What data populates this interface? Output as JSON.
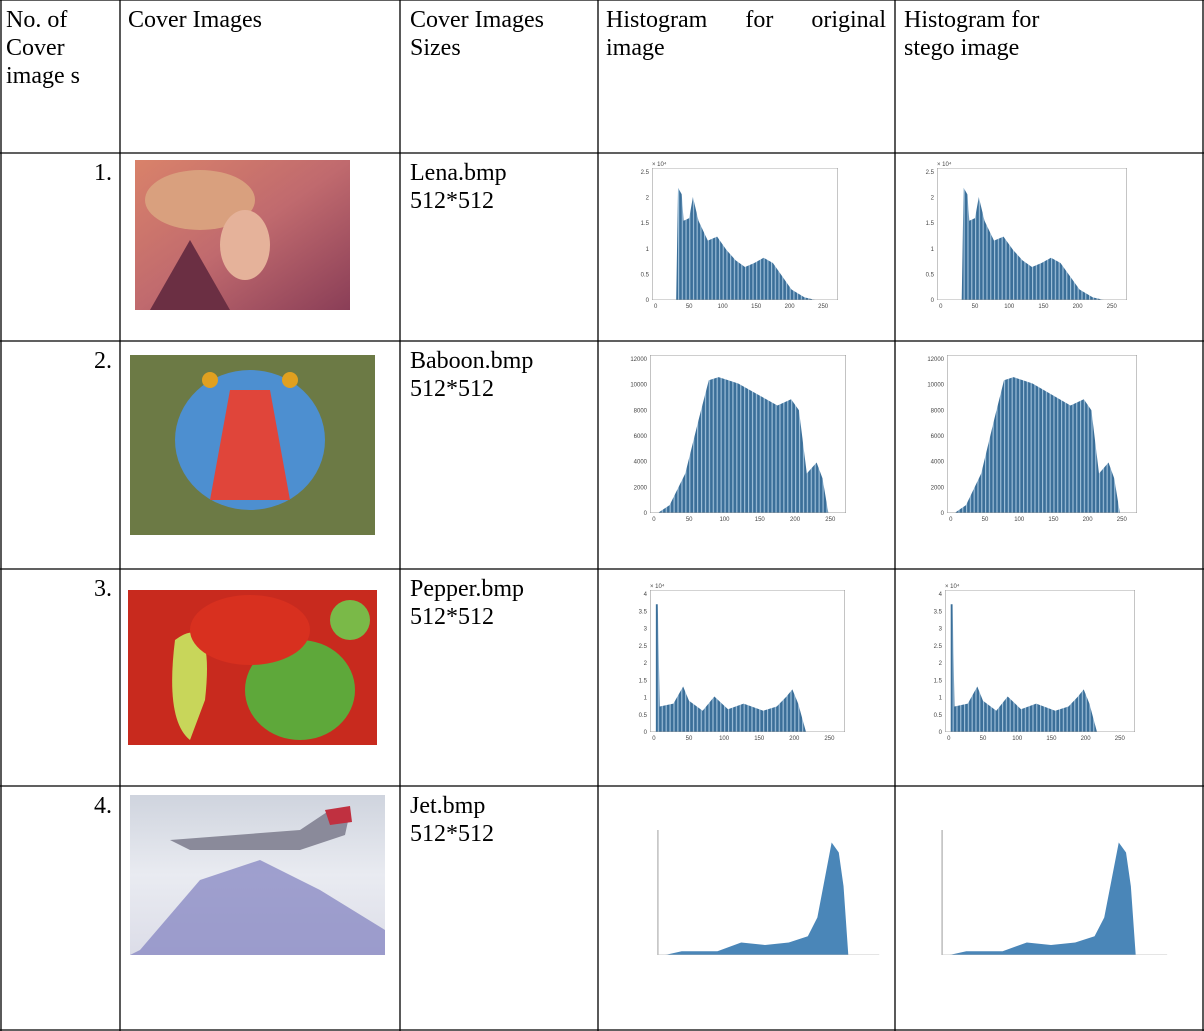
{
  "table": {
    "header": [
      "No. of Cover image s",
      "Cover Images",
      "Cover Images Sizes",
      "Histogram for original image",
      "Histogram for stego image"
    ],
    "rows": [
      {
        "number": "1.",
        "name": "Lena.bmp",
        "size": "512*512",
        "histograms": [
          {
            "y_exponent": "× 10⁴",
            "y_ticks": [
              0,
              0.5,
              1,
              1.5,
              2,
              2.5
            ],
            "x_ticks": [
              0,
              50,
              100,
              150,
              200,
              250
            ]
          },
          {
            "y_exponent": "× 10⁴",
            "y_ticks": [
              0,
              0.5,
              1,
              1.5,
              2,
              2.5
            ],
            "x_ticks": [
              0,
              50,
              100,
              150,
              200,
              250
            ]
          }
        ]
      },
      {
        "number": "2.",
        "name": "Baboon.bmp",
        "size": "512*512",
        "histograms": [
          {
            "y_ticks": [
              0,
              2000,
              4000,
              6000,
              8000,
              10000,
              12000
            ],
            "x_ticks": [
              0,
              50,
              100,
              150,
              200,
              250
            ]
          },
          {
            "y_ticks": [
              0,
              2000,
              4000,
              6000,
              8000,
              10000,
              12000
            ],
            "x_ticks": [
              0,
              50,
              100,
              150,
              200,
              250
            ]
          }
        ]
      },
      {
        "number": "3.",
        "name": "Pepper.bmp",
        "size": "512*512",
        "histograms": [
          {
            "y_exponent": "× 10⁴",
            "y_ticks": [
              0,
              0.5,
              1,
              1.5,
              2,
              2.5,
              3,
              3.5,
              4
            ],
            "x_ticks": [
              0,
              50,
              100,
              150,
              200,
              250
            ]
          },
          {
            "y_exponent": "× 10⁴",
            "y_ticks": [
              0,
              0.5,
              1,
              1.5,
              2,
              2.5,
              3,
              3.5,
              4
            ],
            "x_ticks": [
              0,
              50,
              100,
              150,
              200,
              250
            ]
          }
        ]
      },
      {
        "number": "4.",
        "name": "Jet.bmp",
        "size": "512*512"
      }
    ]
  }
}
